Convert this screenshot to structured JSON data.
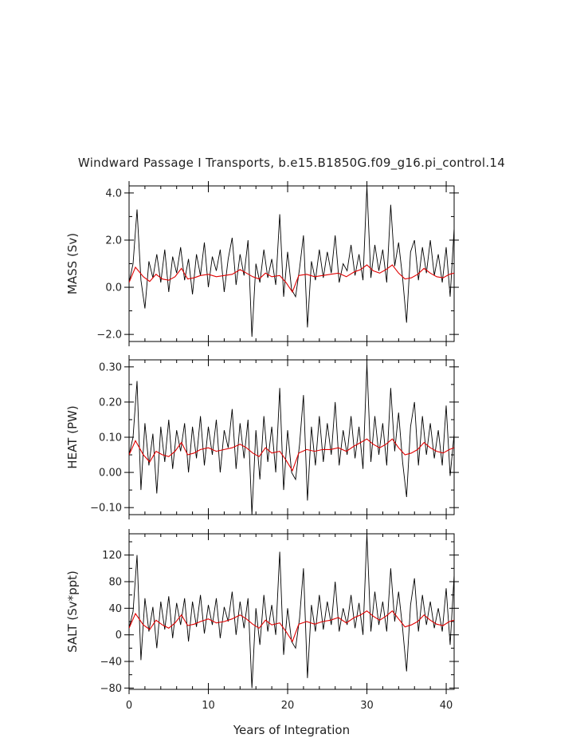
{
  "figure": {
    "title": "Windward Passage I Transports, b.e15.B1850G.f09_g16.pi_control.14",
    "xlabel": "Years of Integration",
    "x_tick_labels": [
      "0",
      "10",
      "20",
      "30",
      "40"
    ]
  },
  "colors": {
    "raw_series": "#000000",
    "smoothed_series": "#e00000",
    "frame": "#000000"
  },
  "chart_data": [
    {
      "type": "line",
      "ylabel": "MASS (Sv)",
      "xlim": [
        0,
        41
      ],
      "ylim": [
        -2.3,
        4.3
      ],
      "yticks": [
        -2.0,
        0.0,
        2.0,
        4.0
      ],
      "ytick_labels": [
        "−2.0",
        "0.0",
        "2.0",
        "4.0"
      ],
      "xticks": [
        0,
        10,
        20,
        30,
        40
      ],
      "series": [
        {
          "x": [
            0.0,
            0.5,
            1.0,
            1.5,
            2.0,
            2.5,
            3.0,
            3.5,
            4.0,
            4.5,
            5.0,
            5.5,
            6.0,
            6.5,
            7.0,
            7.5,
            8.0,
            8.5,
            9.0,
            9.5,
            10.0,
            10.5,
            11.0,
            11.5,
            12.0,
            12.5,
            13.0,
            13.5,
            14.0,
            14.5,
            15.0,
            15.5,
            16.0,
            16.5,
            17.0,
            17.5,
            18.0,
            18.5,
            19.0,
            19.5,
            20.0,
            20.5,
            21.0,
            21.5,
            22.0,
            22.5,
            23.0,
            23.5,
            24.0,
            24.5,
            25.0,
            25.5,
            26.0,
            26.5,
            27.0,
            27.5,
            28.0,
            28.5,
            29.0,
            29.5,
            30.0,
            30.5,
            31.0,
            31.5,
            32.0,
            32.5,
            33.0,
            33.5,
            34.0,
            34.5,
            35.0,
            35.5,
            36.0,
            36.5,
            37.0,
            37.5,
            38.0,
            38.5,
            39.0,
            39.5,
            40.0,
            40.5,
            41.0
          ],
          "y": [
            0.2,
            1.0,
            3.3,
            0.3,
            -0.9,
            1.1,
            0.4,
            1.4,
            0.2,
            1.6,
            -0.2,
            1.3,
            0.6,
            1.7,
            0.3,
            1.2,
            -0.3,
            1.4,
            0.5,
            1.9,
            0.0,
            1.3,
            0.7,
            1.6,
            -0.2,
            1.2,
            2.1,
            0.1,
            1.4,
            0.5,
            2.0,
            -2.1,
            1.0,
            0.2,
            1.6,
            0.4,
            1.2,
            0.1,
            3.1,
            -0.4,
            1.5,
            -0.1,
            -0.4,
            0.8,
            2.2,
            -1.7,
            1.1,
            0.3,
            1.6,
            0.4,
            1.5,
            0.6,
            2.2,
            0.2,
            1.0,
            0.7,
            1.8,
            0.5,
            1.4,
            0.3,
            4.3,
            0.4,
            1.8,
            0.7,
            1.6,
            0.2,
            3.5,
            0.9,
            1.9,
            0.4,
            -1.5,
            1.5,
            2.0,
            0.3,
            1.7,
            0.6,
            2.0,
            0.5,
            1.4,
            0.2,
            1.7,
            -0.4,
            2.5
          ],
          "name": ""
        },
        {
          "x": [
            0.0,
            0.8,
            1.8,
            2.6,
            3.4,
            4.2,
            5.0,
            5.8,
            6.6,
            7.4,
            8.2,
            9.0,
            10.0,
            11.0,
            12.0,
            13.0,
            14.0,
            14.8,
            15.6,
            16.4,
            17.2,
            18.0,
            19.0,
            19.8,
            20.6,
            21.4,
            22.4,
            23.4,
            24.4,
            25.4,
            26.4,
            27.4,
            28.4,
            29.2,
            30.0,
            30.8,
            31.6,
            32.4,
            33.2,
            34.0,
            34.8,
            35.6,
            36.4,
            37.2,
            38.0,
            38.8,
            39.6,
            40.4,
            41.0
          ],
          "y": [
            0.2,
            0.85,
            0.45,
            0.25,
            0.55,
            0.35,
            0.3,
            0.45,
            0.8,
            0.35,
            0.4,
            0.5,
            0.55,
            0.45,
            0.5,
            0.55,
            0.75,
            0.6,
            0.45,
            0.35,
            0.6,
            0.45,
            0.5,
            0.2,
            -0.2,
            0.5,
            0.55,
            0.45,
            0.5,
            0.55,
            0.6,
            0.45,
            0.65,
            0.75,
            0.95,
            0.7,
            0.6,
            0.75,
            0.95,
            0.6,
            0.35,
            0.4,
            0.55,
            0.8,
            0.6,
            0.45,
            0.4,
            0.55,
            0.6
          ],
          "name": ""
        }
      ]
    },
    {
      "type": "line",
      "ylabel": "HEAT (PW)",
      "xlim": [
        0,
        41
      ],
      "ylim": [
        -0.12,
        0.32
      ],
      "yticks": [
        -0.1,
        0.0,
        0.1,
        0.2,
        0.3
      ],
      "ytick_labels": [
        "−0.10",
        "0.00",
        "0.10",
        "0.20",
        "0.30"
      ],
      "xticks": [
        0,
        10,
        20,
        30,
        40
      ],
      "series": [
        {
          "x": [
            0.0,
            0.5,
            1.0,
            1.5,
            2.0,
            2.5,
            3.0,
            3.5,
            4.0,
            4.5,
            5.0,
            5.5,
            6.0,
            6.5,
            7.0,
            7.5,
            8.0,
            8.5,
            9.0,
            9.5,
            10.0,
            10.5,
            11.0,
            11.5,
            12.0,
            12.5,
            13.0,
            13.5,
            14.0,
            14.5,
            15.0,
            15.5,
            16.0,
            16.5,
            17.0,
            17.5,
            18.0,
            18.5,
            19.0,
            19.5,
            20.0,
            20.5,
            21.0,
            21.5,
            22.0,
            22.5,
            23.0,
            23.5,
            24.0,
            24.5,
            25.0,
            25.5,
            26.0,
            26.5,
            27.0,
            27.5,
            28.0,
            28.5,
            29.0,
            29.5,
            30.0,
            30.5,
            31.0,
            31.5,
            32.0,
            32.5,
            33.0,
            33.5,
            34.0,
            34.5,
            35.0,
            35.5,
            36.0,
            36.5,
            37.0,
            37.5,
            38.0,
            38.5,
            39.0,
            39.5,
            40.0,
            40.5,
            41.0
          ],
          "y": [
            0.05,
            0.1,
            0.26,
            -0.05,
            0.14,
            0.02,
            0.11,
            -0.06,
            0.13,
            0.03,
            0.15,
            0.01,
            0.12,
            0.06,
            0.14,
            0.0,
            0.13,
            0.04,
            0.16,
            0.02,
            0.13,
            0.05,
            0.15,
            0.0,
            0.12,
            0.07,
            0.18,
            0.01,
            0.14,
            0.04,
            0.15,
            -0.12,
            0.12,
            -0.02,
            0.16,
            0.03,
            0.13,
            0.0,
            0.24,
            -0.05,
            0.12,
            0.0,
            -0.02,
            0.08,
            0.22,
            -0.08,
            0.13,
            0.02,
            0.16,
            0.03,
            0.14,
            0.05,
            0.2,
            0.02,
            0.12,
            0.05,
            0.16,
            0.04,
            0.13,
            0.01,
            0.31,
            0.03,
            0.16,
            0.05,
            0.14,
            0.02,
            0.24,
            0.06,
            0.17,
            0.03,
            -0.07,
            0.13,
            0.2,
            0.02,
            0.16,
            0.05,
            0.14,
            0.04,
            0.12,
            0.02,
            0.19,
            -0.01,
            0.11
          ],
          "name": ""
        },
        {
          "x": [
            0.0,
            0.8,
            1.8,
            2.6,
            3.4,
            4.2,
            5.0,
            5.8,
            6.6,
            7.4,
            8.2,
            9.0,
            10.0,
            11.0,
            12.0,
            13.0,
            14.0,
            14.8,
            15.6,
            16.4,
            17.2,
            18.0,
            19.0,
            19.8,
            20.6,
            21.4,
            22.4,
            23.4,
            24.4,
            25.4,
            26.4,
            27.4,
            28.4,
            29.2,
            30.0,
            30.8,
            31.6,
            32.4,
            33.2,
            34.0,
            34.8,
            35.6,
            36.4,
            37.2,
            38.0,
            38.8,
            39.6,
            40.4,
            41.0
          ],
          "y": [
            0.05,
            0.09,
            0.05,
            0.03,
            0.06,
            0.05,
            0.045,
            0.06,
            0.085,
            0.05,
            0.055,
            0.065,
            0.07,
            0.06,
            0.065,
            0.07,
            0.08,
            0.07,
            0.055,
            0.045,
            0.07,
            0.055,
            0.06,
            0.035,
            0.005,
            0.055,
            0.065,
            0.06,
            0.065,
            0.065,
            0.07,
            0.06,
            0.075,
            0.085,
            0.095,
            0.08,
            0.07,
            0.08,
            0.095,
            0.07,
            0.05,
            0.055,
            0.065,
            0.085,
            0.07,
            0.06,
            0.055,
            0.065,
            0.07
          ],
          "name": ""
        }
      ]
    },
    {
      "type": "line",
      "ylabel": "SALT (Sv*ppt)",
      "xlim": [
        0,
        41
      ],
      "ylim": [
        -82,
        152
      ],
      "yticks": [
        -80,
        -40,
        0,
        40,
        80,
        120
      ],
      "ytick_labels": [
        "−80",
        "−40",
        "0",
        "40",
        "80",
        "120"
      ],
      "minor_yticks": [
        -60,
        -20,
        20,
        60,
        100,
        140
      ],
      "xticks": [
        0,
        10,
        20,
        30,
        40
      ],
      "series": [
        {
          "x": [
            0.0,
            0.5,
            1.0,
            1.5,
            2.0,
            2.5,
            3.0,
            3.5,
            4.0,
            4.5,
            5.0,
            5.5,
            6.0,
            6.5,
            7.0,
            7.5,
            8.0,
            8.5,
            9.0,
            9.5,
            10.0,
            10.5,
            11.0,
            11.5,
            12.0,
            12.5,
            13.0,
            13.5,
            14.0,
            14.5,
            15.0,
            15.5,
            16.0,
            16.5,
            17.0,
            17.5,
            18.0,
            18.5,
            19.0,
            19.5,
            20.0,
            20.5,
            21.0,
            21.5,
            22.0,
            22.5,
            23.0,
            23.5,
            24.0,
            24.5,
            25.0,
            25.5,
            26.0,
            26.5,
            27.0,
            27.5,
            28.0,
            28.5,
            29.0,
            29.5,
            30.0,
            30.5,
            31.0,
            31.5,
            32.0,
            32.5,
            33.0,
            33.5,
            34.0,
            34.5,
            35.0,
            35.5,
            36.0,
            36.5,
            37.0,
            37.5,
            38.0,
            38.5,
            39.0,
            39.5,
            40.0,
            40.5,
            41.0
          ],
          "y": [
            10,
            35,
            120,
            -38,
            55,
            5,
            42,
            -20,
            50,
            8,
            58,
            -5,
            48,
            15,
            55,
            -10,
            50,
            12,
            60,
            2,
            45,
            15,
            55,
            -5,
            42,
            20,
            65,
            0,
            50,
            10,
            55,
            -80,
            40,
            -15,
            60,
            5,
            45,
            0,
            125,
            -30,
            40,
            -10,
            -20,
            25,
            100,
            -65,
            45,
            5,
            60,
            8,
            50,
            15,
            80,
            5,
            40,
            15,
            60,
            10,
            48,
            0,
            152,
            5,
            65,
            15,
            50,
            5,
            100,
            20,
            65,
            10,
            -55,
            45,
            85,
            5,
            60,
            15,
            50,
            10,
            40,
            5,
            70,
            -15,
            90
          ],
          "name": ""
        },
        {
          "x": [
            0.0,
            0.8,
            1.8,
            2.6,
            3.4,
            4.2,
            5.0,
            5.8,
            6.6,
            7.4,
            8.2,
            9.0,
            10.0,
            11.0,
            12.0,
            13.0,
            14.0,
            14.8,
            15.6,
            16.4,
            17.2,
            18.0,
            19.0,
            19.8,
            20.6,
            21.4,
            22.4,
            23.4,
            24.4,
            25.4,
            26.4,
            27.4,
            28.4,
            29.2,
            30.0,
            30.8,
            31.6,
            32.4,
            33.2,
            34.0,
            34.8,
            35.6,
            36.4,
            37.2,
            38.0,
            38.8,
            39.6,
            40.4,
            41.0
          ],
          "y": [
            10,
            32,
            15,
            8,
            22,
            15,
            10,
            18,
            30,
            14,
            16,
            20,
            24,
            18,
            20,
            24,
            30,
            24,
            16,
            10,
            22,
            15,
            18,
            5,
            -10,
            16,
            20,
            16,
            20,
            22,
            26,
            18,
            26,
            30,
            36,
            28,
            22,
            28,
            36,
            24,
            12,
            15,
            20,
            30,
            22,
            16,
            14,
            20,
            22
          ],
          "name": ""
        }
      ]
    }
  ]
}
